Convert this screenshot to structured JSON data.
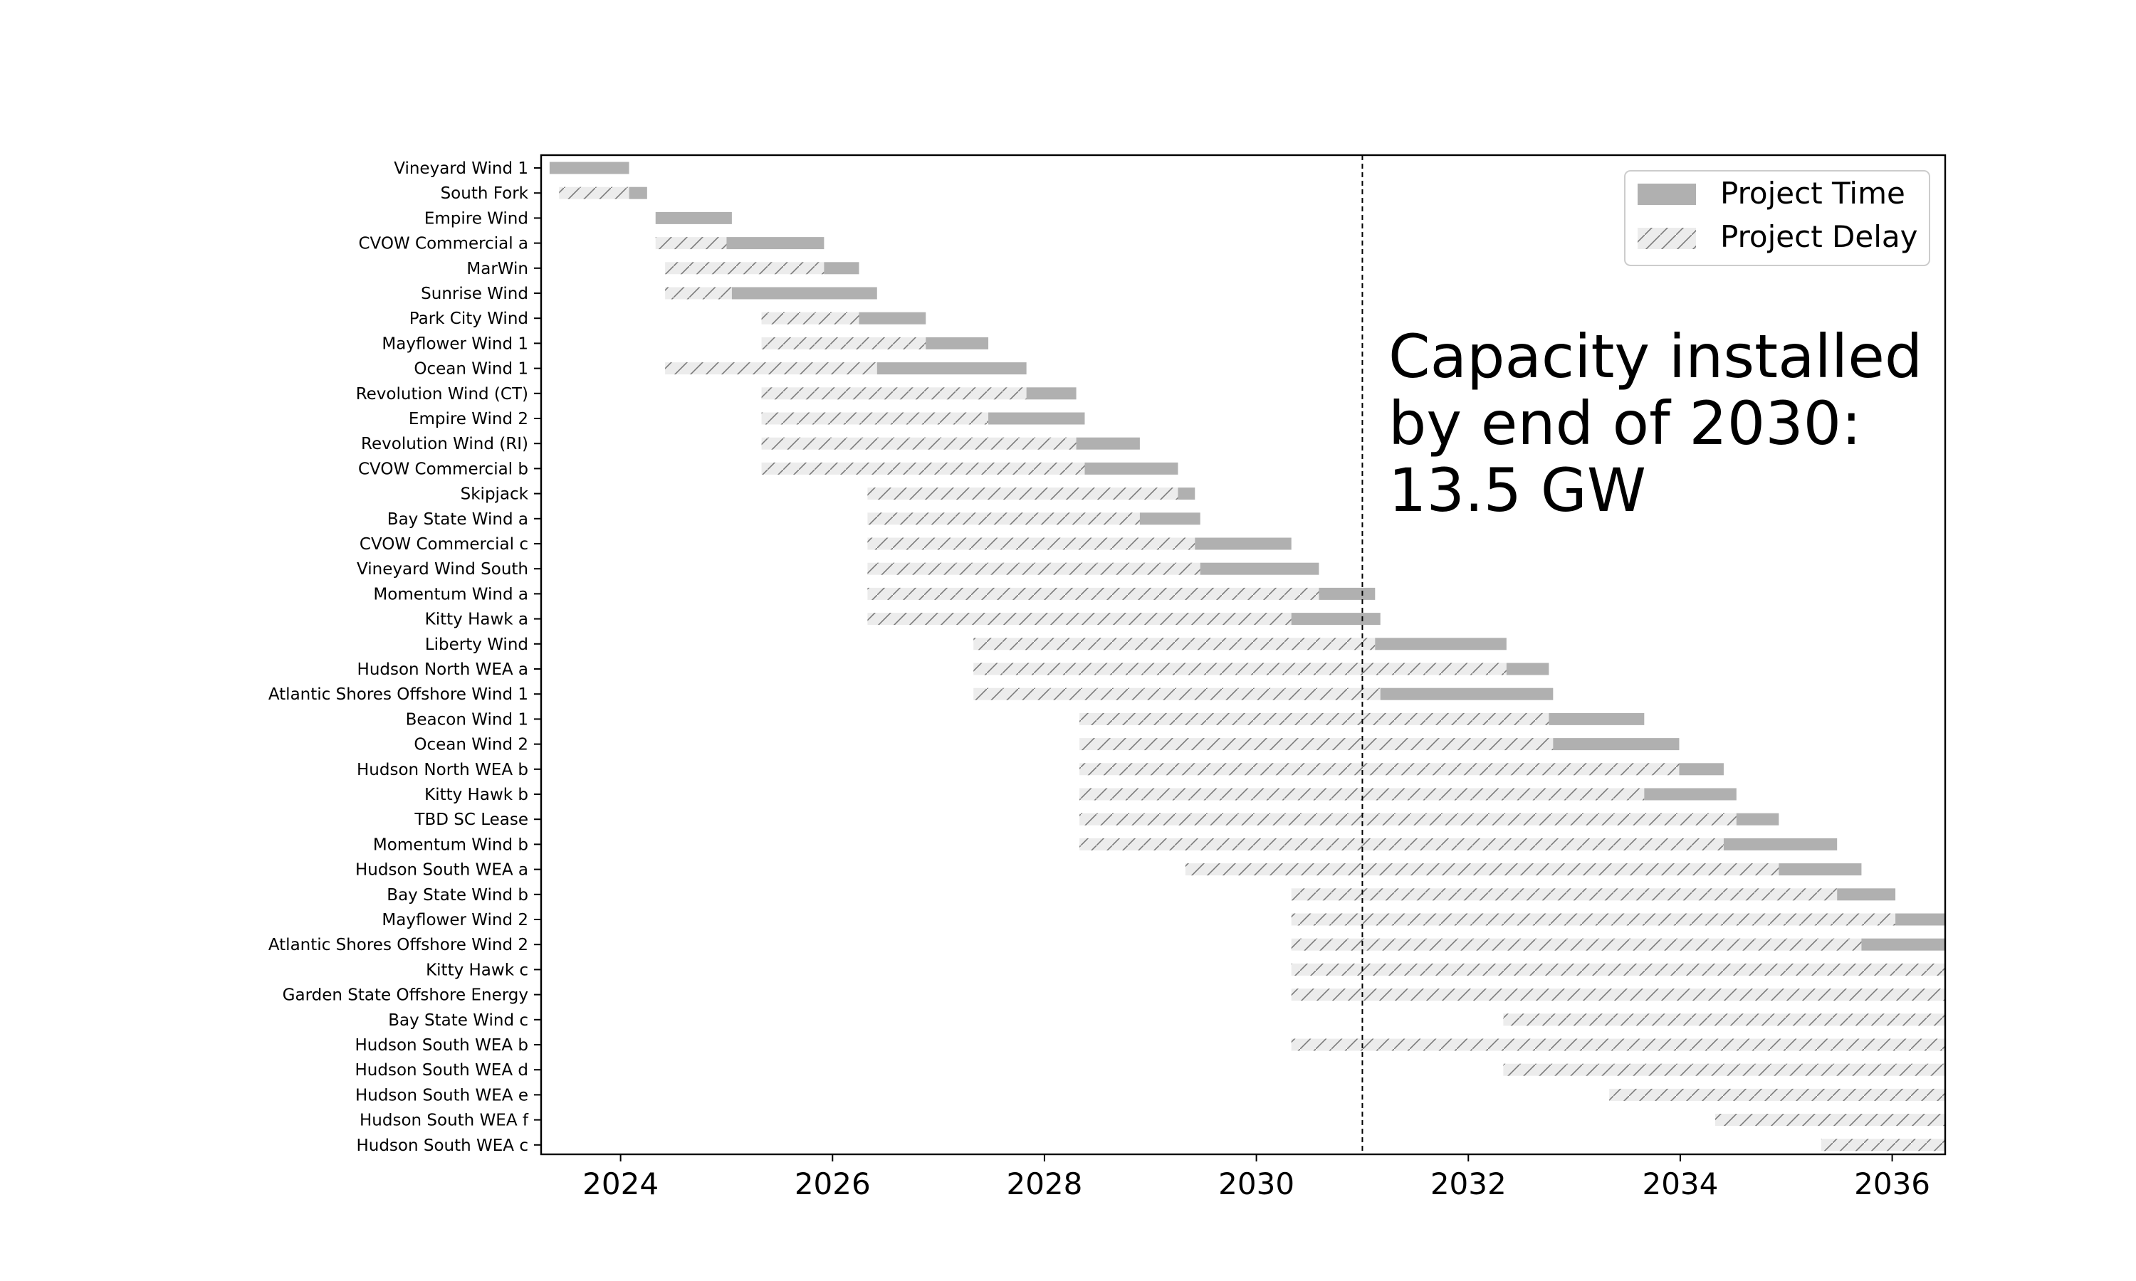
{
  "chart_data": {
    "type": "gantt",
    "title": "",
    "xlabel": "",
    "ylabel": "",
    "xlim": [
      2023.25,
      2036.5
    ],
    "x_ticks": [
      2024,
      2026,
      2028,
      2030,
      2032,
      2034,
      2036
    ],
    "grid": false,
    "legend": {
      "position": "top-right",
      "entries": [
        {
          "key": "time",
          "label": "Project Time"
        },
        {
          "key": "delay",
          "label": "Project Delay"
        }
      ]
    },
    "reference_line": {
      "x": 2031.0,
      "style": "dashed"
    },
    "annotation": {
      "lines": [
        "Capacity installed",
        "by end of 2030:",
        "13.5 GW"
      ]
    },
    "colors": {
      "time": "#b0b0b0",
      "delay_fill": "#ececec",
      "hatch": "#7a7a7a",
      "axis": "#000000"
    },
    "projects": [
      {
        "name": "Vineyard Wind 1",
        "delay": null,
        "time": [
          2023.33,
          2024.08
        ]
      },
      {
        "name": "South Fork",
        "delay": [
          2023.42,
          2024.08
        ],
        "time": [
          2024.08,
          2024.25
        ]
      },
      {
        "name": "Empire Wind",
        "delay": null,
        "time": [
          2024.33,
          2025.05
        ]
      },
      {
        "name": "CVOW Commercial a",
        "delay": [
          2024.33,
          2025.0
        ],
        "time": [
          2025.0,
          2025.92
        ]
      },
      {
        "name": "MarWin",
        "delay": [
          2024.42,
          2025.92
        ],
        "time": [
          2025.92,
          2026.25
        ]
      },
      {
        "name": "Sunrise Wind",
        "delay": [
          2024.42,
          2025.05
        ],
        "time": [
          2025.05,
          2026.42
        ]
      },
      {
        "name": "Park City Wind",
        "delay": [
          2025.33,
          2026.25
        ],
        "time": [
          2026.25,
          2026.88
        ]
      },
      {
        "name": "Mayflower Wind 1",
        "delay": [
          2025.33,
          2026.88
        ],
        "time": [
          2026.88,
          2027.47
        ]
      },
      {
        "name": "Ocean Wind 1",
        "delay": [
          2024.42,
          2026.42
        ],
        "time": [
          2026.42,
          2027.83
        ]
      },
      {
        "name": "Revolution Wind (CT)",
        "delay": [
          2025.33,
          2027.83
        ],
        "time": [
          2027.83,
          2028.3
        ]
      },
      {
        "name": "Empire Wind 2",
        "delay": [
          2025.33,
          2027.47
        ],
        "time": [
          2027.47,
          2028.38
        ]
      },
      {
        "name": "Revolution Wind (RI)",
        "delay": [
          2025.33,
          2028.3
        ],
        "time": [
          2028.3,
          2028.9
        ]
      },
      {
        "name": "CVOW Commercial b",
        "delay": [
          2025.33,
          2028.38
        ],
        "time": [
          2028.38,
          2029.26
        ]
      },
      {
        "name": "Skipjack",
        "delay": [
          2026.33,
          2029.26
        ],
        "time": [
          2029.26,
          2029.42
        ]
      },
      {
        "name": "Bay State Wind a",
        "delay": [
          2026.33,
          2028.9
        ],
        "time": [
          2028.9,
          2029.47
        ]
      },
      {
        "name": "CVOW Commercial c",
        "delay": [
          2026.33,
          2029.42
        ],
        "time": [
          2029.42,
          2030.33
        ]
      },
      {
        "name": "Vineyard Wind South",
        "delay": [
          2026.33,
          2029.47
        ],
        "time": [
          2029.47,
          2030.59
        ]
      },
      {
        "name": "Momentum Wind a",
        "delay": [
          2026.33,
          2030.59
        ],
        "time": [
          2030.59,
          2031.12
        ]
      },
      {
        "name": "Kitty Hawk a",
        "delay": [
          2026.33,
          2030.33
        ],
        "time": [
          2030.33,
          2031.17
        ]
      },
      {
        "name": "Liberty Wind",
        "delay": [
          2027.33,
          2031.12
        ],
        "time": [
          2031.12,
          2032.36
        ]
      },
      {
        "name": "Hudson North WEA a",
        "delay": [
          2027.33,
          2032.36
        ],
        "time": [
          2032.36,
          2032.76
        ]
      },
      {
        "name": "Atlantic Shores Offshore Wind 1",
        "delay": [
          2027.33,
          2031.17
        ],
        "time": [
          2031.17,
          2032.8
        ]
      },
      {
        "name": "Beacon Wind 1",
        "delay": [
          2028.33,
          2032.76
        ],
        "time": [
          2032.76,
          2033.66
        ]
      },
      {
        "name": "Ocean Wind 2",
        "delay": [
          2028.33,
          2032.8
        ],
        "time": [
          2032.8,
          2033.99
        ]
      },
      {
        "name": "Hudson North WEA b",
        "delay": [
          2028.33,
          2033.99
        ],
        "time": [
          2033.99,
          2034.41
        ]
      },
      {
        "name": "Kitty Hawk b",
        "delay": [
          2028.33,
          2033.66
        ],
        "time": [
          2033.66,
          2034.53
        ]
      },
      {
        "name": "TBD SC Lease",
        "delay": [
          2028.33,
          2034.53
        ],
        "time": [
          2034.53,
          2034.93
        ]
      },
      {
        "name": "Momentum Wind b",
        "delay": [
          2028.33,
          2034.41
        ],
        "time": [
          2034.41,
          2035.48
        ]
      },
      {
        "name": "Hudson South WEA a",
        "delay": [
          2029.33,
          2034.93
        ],
        "time": [
          2034.93,
          2035.71
        ]
      },
      {
        "name": "Bay State Wind b",
        "delay": [
          2030.33,
          2035.48
        ],
        "time": [
          2035.48,
          2036.03
        ]
      },
      {
        "name": "Mayflower Wind 2",
        "delay": [
          2030.33,
          2036.03
        ],
        "time": [
          2036.03,
          2036.5
        ]
      },
      {
        "name": "Atlantic Shores Offshore Wind 2",
        "delay": [
          2030.33,
          2035.71
        ],
        "time": [
          2035.71,
          2036.5
        ]
      },
      {
        "name": "Kitty Hawk c",
        "delay": [
          2030.33,
          2036.5
        ],
        "time": null
      },
      {
        "name": "Garden State Offshore Energy",
        "delay": [
          2030.33,
          2036.5
        ],
        "time": null
      },
      {
        "name": "Bay State Wind c",
        "delay": [
          2032.33,
          2036.5
        ],
        "time": null
      },
      {
        "name": "Hudson South WEA b",
        "delay": [
          2030.33,
          2036.5
        ],
        "time": null
      },
      {
        "name": "Hudson South WEA d",
        "delay": [
          2032.33,
          2036.5
        ],
        "time": null
      },
      {
        "name": "Hudson South WEA e",
        "delay": [
          2033.33,
          2036.5
        ],
        "time": null
      },
      {
        "name": "Hudson South WEA f",
        "delay": [
          2034.33,
          2036.5
        ],
        "time": null
      },
      {
        "name": "Hudson South WEA c",
        "delay": [
          2035.33,
          2036.5
        ],
        "time": null
      }
    ]
  }
}
